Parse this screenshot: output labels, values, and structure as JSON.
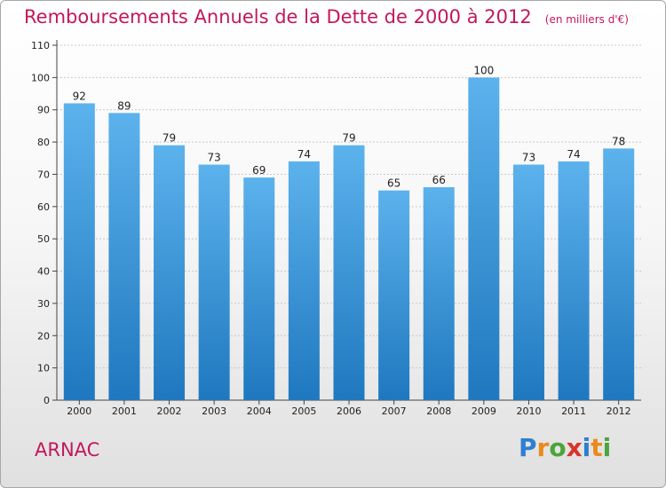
{
  "header": {
    "title": "Remboursements Annuels de la Dette de 2000 à 2012",
    "unit": "(en milliers d'€)"
  },
  "footer": {
    "commune": "ARNAC",
    "logo": "Proxiti"
  },
  "colors": {
    "title": "#c2185b",
    "bar_top": "#5cb2ec",
    "bar_bottom": "#1f78bf",
    "grid": "#c8c8c8"
  },
  "chart_data": {
    "type": "bar",
    "title": "Remboursements Annuels de la Dette de 2000 à 2012",
    "subtitle": "(en milliers d'€)",
    "categories": [
      "2000",
      "2001",
      "2002",
      "2003",
      "2004",
      "2005",
      "2006",
      "2007",
      "2008",
      "2009",
      "2010",
      "2011",
      "2012"
    ],
    "values": [
      92,
      89,
      79,
      73,
      69,
      74,
      79,
      65,
      66,
      100,
      73,
      74,
      78
    ],
    "ylim": [
      0,
      110
    ],
    "yticks": [
      0,
      10,
      20,
      30,
      40,
      50,
      60,
      70,
      80,
      90,
      100,
      110
    ],
    "grid": true,
    "data_labels": true
  }
}
